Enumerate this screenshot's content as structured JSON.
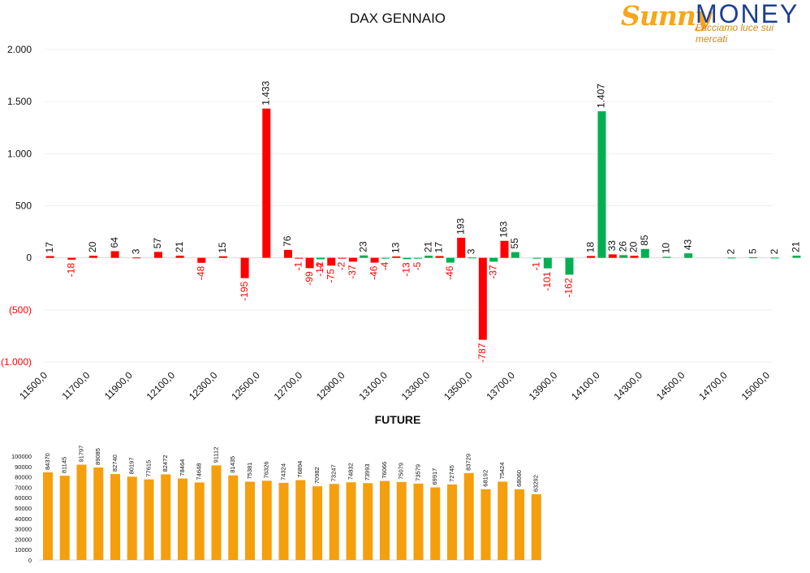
{
  "title": "DAX GENNAIO",
  "logo": {
    "sunny": "Sunny",
    "money": "MONEY",
    "tagline": "Facciamo luce sui mercati"
  },
  "colors": {
    "negative": "#ff0000",
    "positive_call": "#00b050",
    "future": "#f59f0d",
    "neg_label": "#ff0000"
  },
  "future_title": "FUTURE",
  "chart_data": [
    {
      "type": "bar",
      "title": "DAX GENNAIO",
      "ylim": [
        -1000,
        2000
      ],
      "y_ticks": [
        2000,
        1500,
        1000,
        500,
        0,
        -500,
        -1000
      ],
      "y_tick_labels": [
        "2.000",
        "1.500",
        "1.000",
        "500",
        "0",
        "(500)",
        "(1.000)"
      ],
      "x_tick_labels": [
        "11500,0",
        "11700,0",
        "11900,0",
        "12100,0",
        "12300,0",
        "12500,0",
        "12700,0",
        "12900,0",
        "13100,0",
        "13300,0",
        "13500,0",
        "13700,0",
        "13900,0",
        "14100,0",
        "14300,0",
        "14500,0",
        "14700,0",
        "15000,0"
      ],
      "strike_start": 11500,
      "strike_step": 50,
      "series": [
        {
          "color": "#ff0000",
          "values": [
            [
              11500,
              17,
              "17"
            ],
            [
              11600,
              -18,
              "-18"
            ],
            [
              11700,
              20,
              "20"
            ],
            [
              11800,
              64,
              "64"
            ],
            [
              11900,
              3,
              "3"
            ],
            [
              12000,
              57,
              "57"
            ],
            [
              12100,
              21,
              "21"
            ],
            [
              12200,
              -48,
              "-48"
            ],
            [
              12300,
              15,
              "15"
            ],
            [
              12400,
              -195,
              "-195"
            ],
            [
              12500,
              1433,
              "1.433"
            ],
            [
              12600,
              76,
              "76"
            ],
            [
              12650,
              -1,
              "-1"
            ],
            [
              12700,
              -99,
              "-99"
            ],
            [
              12750,
              -2,
              "-2"
            ],
            [
              12800,
              -75,
              "-75"
            ],
            [
              12850,
              -2,
              "-2"
            ],
            [
              12900,
              -37,
              "-37"
            ],
            [
              13000,
              -46,
              "-46"
            ],
            [
              13100,
              13,
              "13"
            ],
            [
              13300,
              17,
              "17"
            ],
            [
              13400,
              193,
              "193"
            ],
            [
              13500,
              -787,
              "-787"
            ],
            [
              13600,
              163,
              "163"
            ],
            [
              14000,
              18,
              "18"
            ],
            [
              14100,
              33,
              "33"
            ],
            [
              14200,
              20,
              "20"
            ]
          ]
        },
        {
          "color": "#00b050",
          "values": [
            [
              12750,
              -14,
              "-14"
            ],
            [
              12950,
              23,
              "23"
            ],
            [
              13050,
              -4,
              "-4"
            ],
            [
              13150,
              -13,
              "-13"
            ],
            [
              13200,
              -5,
              "-5"
            ],
            [
              13250,
              21,
              "21"
            ],
            [
              13350,
              -46,
              "-46"
            ],
            [
              13450,
              3,
              "3"
            ],
            [
              13550,
              -37,
              "-37"
            ],
            [
              13650,
              55,
              "55"
            ],
            [
              13750,
              -1,
              "-1"
            ],
            [
              13800,
              -101,
              "-101"
            ],
            [
              13900,
              -162,
              "-162"
            ],
            [
              14050,
              1407,
              "1.407"
            ],
            [
              14150,
              26,
              "26"
            ],
            [
              14250,
              85,
              "85"
            ],
            [
              14350,
              10,
              "10"
            ],
            [
              14450,
              43,
              "43"
            ],
            [
              14650,
              2,
              "2"
            ],
            [
              14750,
              5,
              "5"
            ],
            [
              14850,
              2,
              "2"
            ],
            [
              14950,
              21,
              "21"
            ]
          ]
        }
      ]
    },
    {
      "type": "bar",
      "title": "FUTURE",
      "ylim": [
        0,
        100000
      ],
      "y_ticks": [
        0,
        10000,
        20000,
        30000,
        40000,
        50000,
        60000,
        70000,
        80000,
        90000,
        100000
      ],
      "series": [
        {
          "color": "#f59f0d",
          "values": [
            84370,
            81145,
            91797,
            89085,
            82740,
            80197,
            77615,
            82472,
            78464,
            74648,
            91112,
            81435,
            75381,
            76326,
            74324,
            76894,
            70982,
            73247,
            74832,
            73993,
            76066,
            75079,
            73579,
            69917,
            72745,
            83729,
            68192,
            75424,
            68060,
            63292
          ]
        }
      ]
    }
  ]
}
